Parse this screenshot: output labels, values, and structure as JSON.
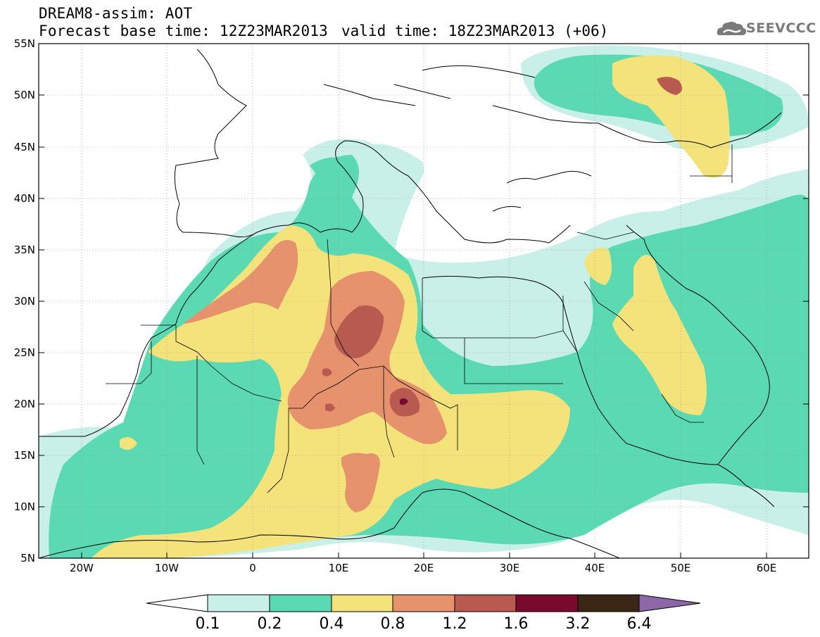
{
  "header": {
    "line1": "DREAM8-assim: AOT",
    "line2": "Forecast base time: 12Z23MAR2013",
    "valid": "valid time: 18Z23MAR2013 (+06)",
    "logo": "SEEVCCC"
  },
  "axes": {
    "lat_labels": [
      "55N",
      "50N",
      "45N",
      "40N",
      "35N",
      "30N",
      "25N",
      "20N",
      "15N",
      "10N",
      "5N"
    ],
    "lon_labels": [
      "20W",
      "10W",
      "0",
      "10E",
      "20E",
      "30E",
      "40E",
      "50E",
      "60E"
    ],
    "lat_range": [
      5,
      55
    ],
    "lon_range": [
      -25,
      65
    ]
  },
  "legend": {
    "levels": [
      "0.1",
      "0.2",
      "0.4",
      "0.8",
      "1.2",
      "1.6",
      "3.2",
      "6.4"
    ],
    "colors": [
      "#c8efe8",
      "#5ad9b3",
      "#f4e37a",
      "#e6926c",
      "#b85a4f",
      "#7a0a2c",
      "#3b2615",
      "#8e67a8"
    ],
    "under_color": "#ffffff"
  },
  "layers": {
    "l01": "#c8efe8",
    "l02": "#5ad9b3",
    "l04": "#f4e37a",
    "l08": "#e6926c",
    "l12": "#b85a4f",
    "l16": "#7a0a2c"
  }
}
